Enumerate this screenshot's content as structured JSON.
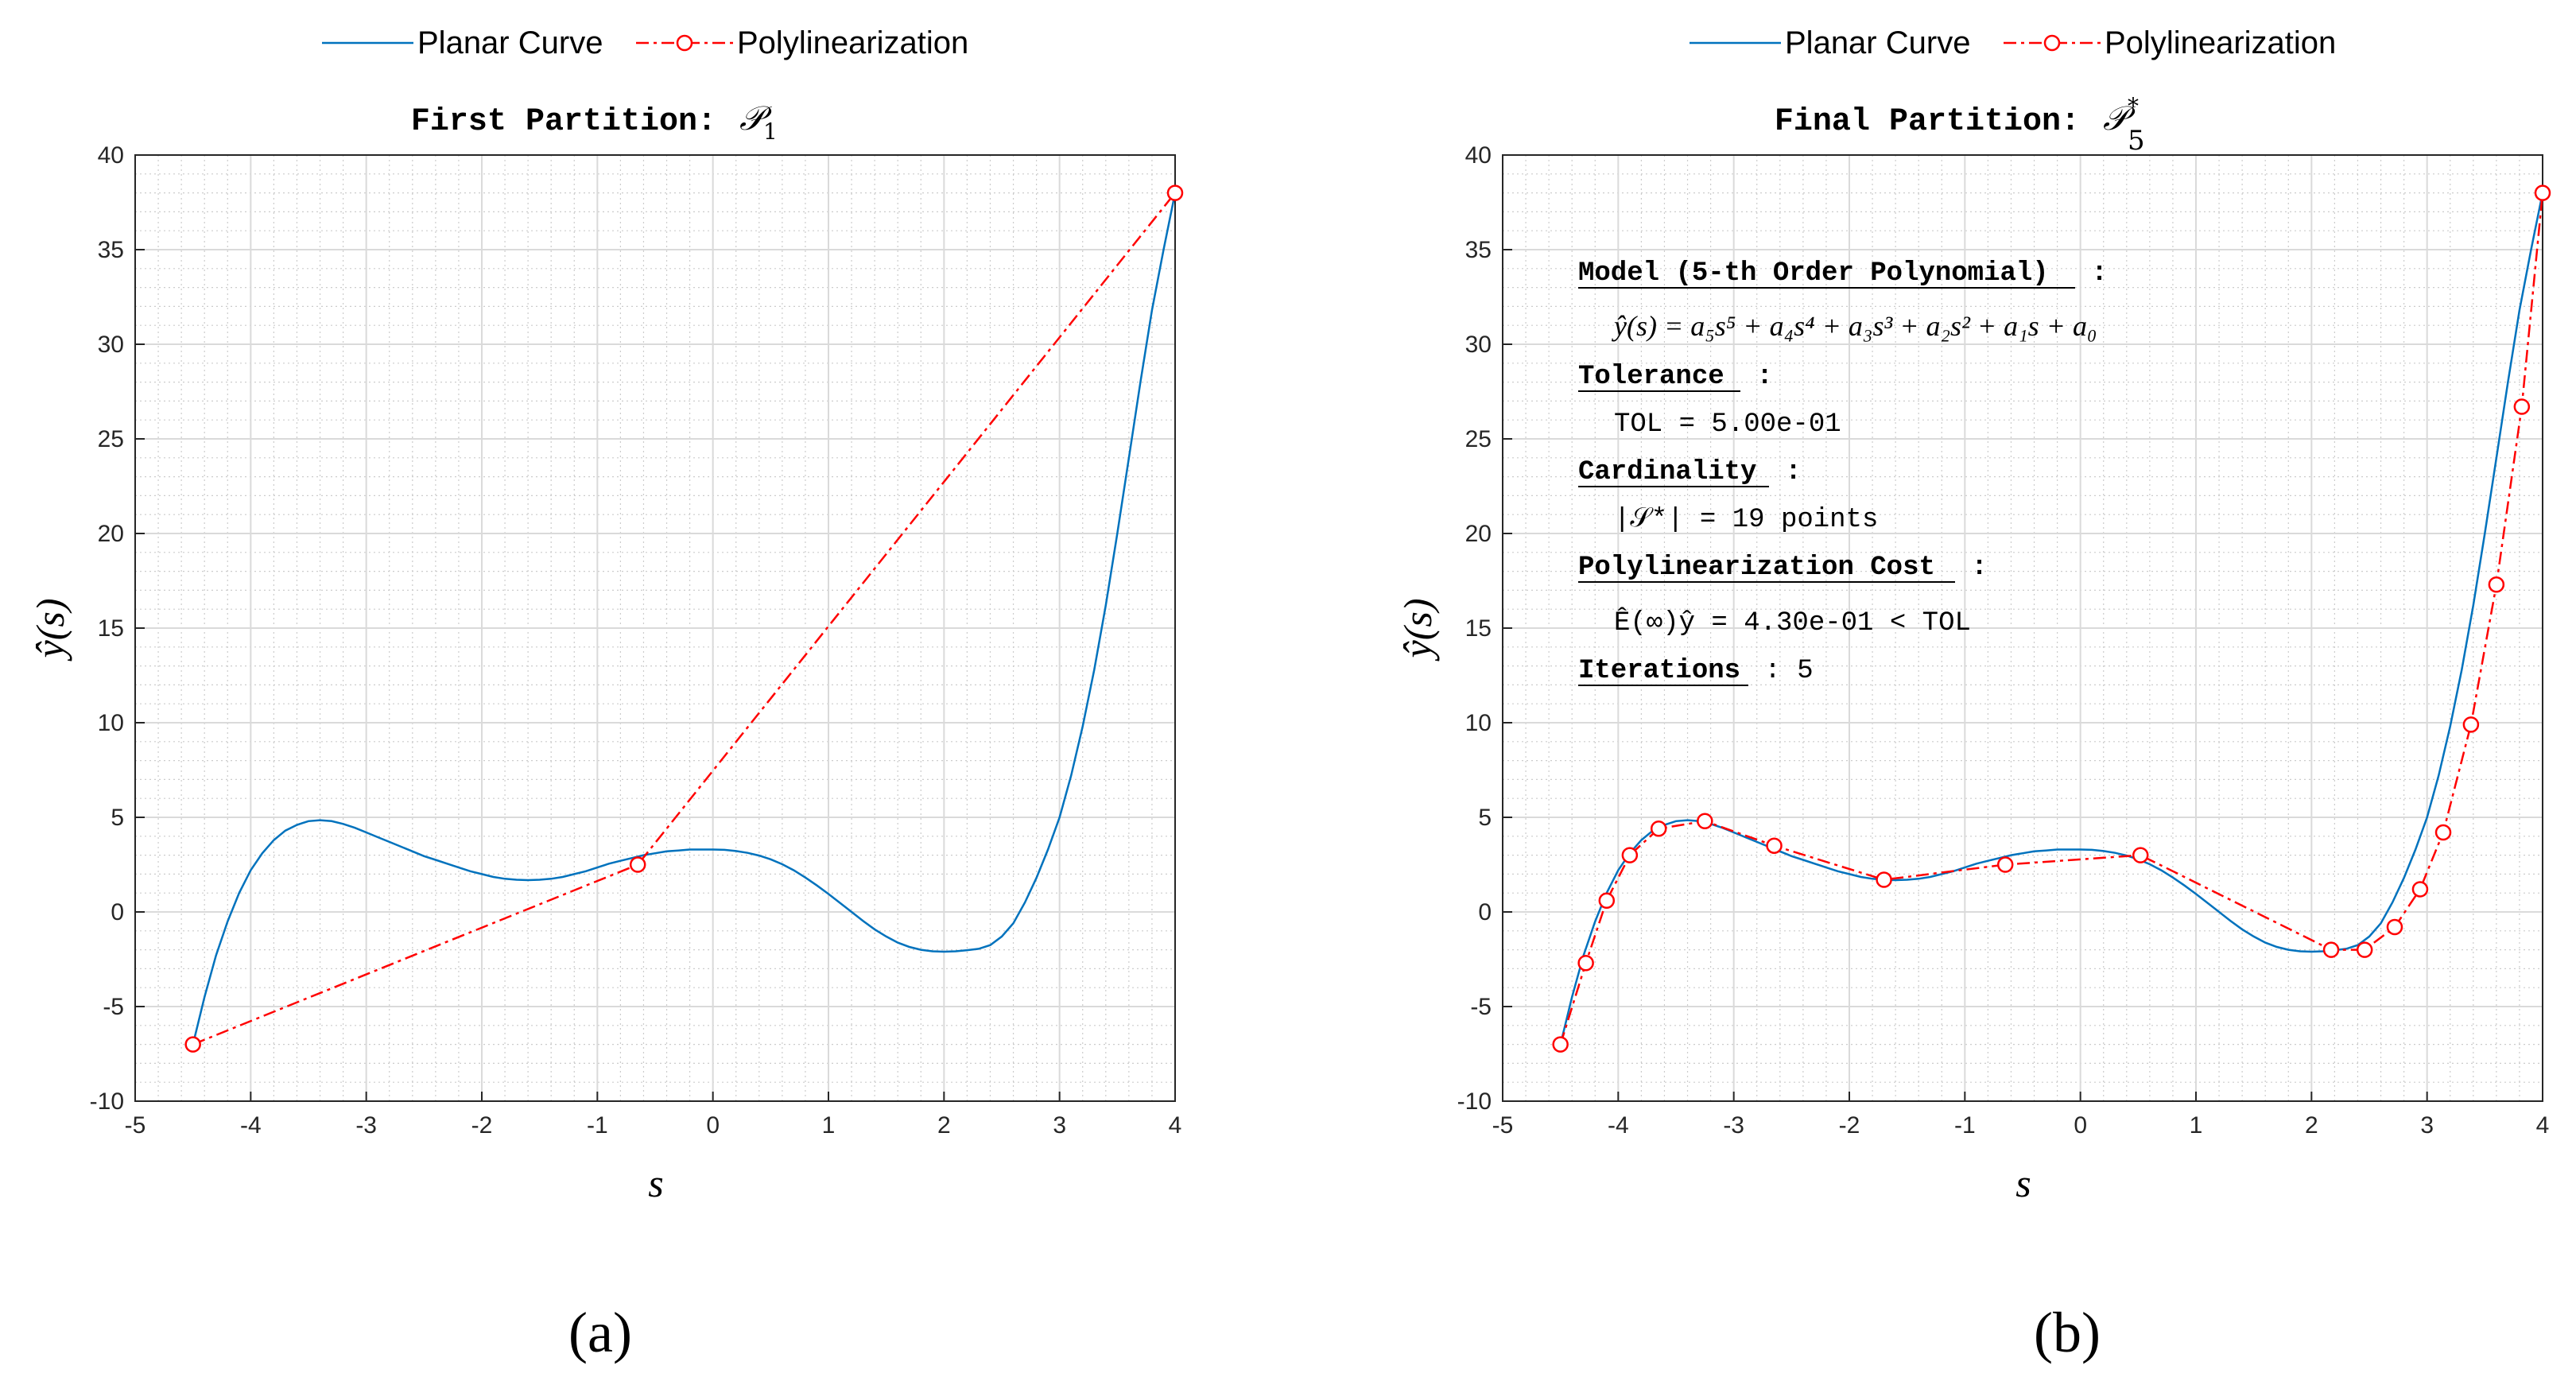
{
  "colors": {
    "curve": "#0072BD",
    "poly": "#FF0000",
    "marker_fill": "#FFFFFF",
    "grid_major": "#E6E6E6",
    "grid_minor": "#CCCCCC",
    "axis": "#262626"
  },
  "legend": {
    "curve_label": "Planar Curve",
    "poly_label": "Polylinearization",
    "placement": "top-center"
  },
  "panels": [
    {
      "title_text": "First Partition: ",
      "title_symbol": "𝒫",
      "title_sub": "1",
      "title_sup": "",
      "xlabel": "s",
      "ylabel": "ŷ(s)",
      "caption": "(a)",
      "annotation": null
    },
    {
      "title_text": "Final Partition: ",
      "title_symbol": "𝒫",
      "title_sub": "5",
      "title_sup": "*",
      "xlabel": "s",
      "ylabel": "ŷ(s)",
      "caption": "(b)",
      "annotation": {
        "model_head": "Model (5-th Order Polynomial)",
        "model_colon": " :",
        "model_eq": "ŷ(s) = a₅s⁵ + a₄s⁴ + a₃s³ + a₂s² + a₁s + a₀",
        "tol_head": "Tolerance",
        "tol_colon": " :",
        "tol_value": "TOL = 5.00e-01",
        "card_head": "Cardinality",
        "card_colon": " :",
        "card_value": "|𝒮*| = 19 points",
        "cost_head": "Polylinearization Cost",
        "cost_colon": " :",
        "cost_value": "Ê(∞)ŷ = 4.30e-01 < TOL",
        "iter_head": "Iterations",
        "iter_value": " : 5"
      }
    }
  ],
  "chart_data": [
    {
      "type": "line",
      "title": "First Partition: 𝒫1",
      "xlabel": "s",
      "ylabel": "ŷ(s)",
      "xlim": [
        -5,
        4
      ],
      "ylim": [
        -10,
        40
      ],
      "xticks": [
        -5,
        -4,
        -3,
        -2,
        -1,
        0,
        1,
        2,
        3,
        4
      ],
      "yticks": [
        -10,
        -5,
        0,
        5,
        10,
        15,
        20,
        25,
        30,
        35,
        40
      ],
      "grid": true,
      "minor_grid": true,
      "series": [
        {
          "name": "Planar Curve",
          "style": "solid",
          "x": [
            -4.5,
            -4.4,
            -4.3,
            -4.2,
            -4.1,
            -4.0,
            -3.9,
            -3.8,
            -3.7,
            -3.6,
            -3.5,
            -3.4,
            -3.3,
            -3.2,
            -3.1,
            -3.0,
            -2.9,
            -2.8,
            -2.7,
            -2.6,
            -2.5,
            -2.4,
            -2.3,
            -2.2,
            -2.1,
            -2.0,
            -1.9,
            -1.8,
            -1.7,
            -1.6,
            -1.5,
            -1.4,
            -1.3,
            -1.2,
            -1.1,
            -1.0,
            -0.9,
            -0.8,
            -0.7,
            -0.6,
            -0.5,
            -0.4,
            -0.3,
            -0.2,
            -0.1,
            0.0,
            0.1,
            0.2,
            0.3,
            0.4,
            0.5,
            0.6,
            0.7,
            0.8,
            0.9,
            1.0,
            1.1,
            1.2,
            1.3,
            1.4,
            1.5,
            1.6,
            1.7,
            1.8,
            1.9,
            2.0,
            2.1,
            2.2,
            2.3,
            2.4,
            2.5,
            2.6,
            2.7,
            2.8,
            2.9,
            3.0,
            3.1,
            3.2,
            3.3,
            3.4,
            3.5,
            3.6,
            3.7,
            3.8,
            3.9,
            4.0
          ],
          "y": [
            -7.0,
            -4.5,
            -2.3,
            -0.5,
            1.0,
            2.2,
            3.1,
            3.8,
            4.3,
            4.6,
            4.8,
            4.85,
            4.8,
            4.65,
            4.45,
            4.2,
            3.95,
            3.7,
            3.45,
            3.2,
            2.95,
            2.75,
            2.55,
            2.35,
            2.15,
            2.0,
            1.85,
            1.75,
            1.7,
            1.68,
            1.7,
            1.75,
            1.85,
            2.0,
            2.15,
            2.35,
            2.55,
            2.7,
            2.85,
            3.0,
            3.1,
            3.2,
            3.25,
            3.3,
            3.3,
            3.3,
            3.28,
            3.22,
            3.12,
            2.98,
            2.78,
            2.52,
            2.2,
            1.82,
            1.4,
            0.95,
            0.48,
            0.0,
            -0.48,
            -0.92,
            -1.3,
            -1.62,
            -1.85,
            -2.0,
            -2.08,
            -2.1,
            -2.08,
            -2.02,
            -1.95,
            -1.75,
            -1.3,
            -0.6,
            0.5,
            1.8,
            3.3,
            5.0,
            7.2,
            9.8,
            12.8,
            16.2,
            20.0,
            24.0,
            28.0,
            31.8,
            35.0,
            38.0
          ]
        },
        {
          "name": "Polylinearization",
          "style": "dash-dot with circle markers",
          "x": [
            -4.5,
            -0.65,
            4.0
          ],
          "y": [
            -7.0,
            2.5,
            38.0
          ]
        }
      ]
    },
    {
      "type": "line",
      "title": "Final Partition: 𝒫*5",
      "xlabel": "s",
      "ylabel": "ŷ(s)",
      "xlim": [
        -5,
        4
      ],
      "ylim": [
        -10,
        40
      ],
      "xticks": [
        -5,
        -4,
        -3,
        -2,
        -1,
        0,
        1,
        2,
        3,
        4
      ],
      "yticks": [
        -10,
        -5,
        0,
        5,
        10,
        15,
        20,
        25,
        30,
        35,
        40
      ],
      "grid": true,
      "minor_grid": true,
      "series": [
        {
          "name": "Planar Curve",
          "style": "solid",
          "x": [
            -4.5,
            -4.4,
            -4.3,
            -4.2,
            -4.1,
            -4.0,
            -3.9,
            -3.8,
            -3.7,
            -3.6,
            -3.5,
            -3.4,
            -3.3,
            -3.2,
            -3.1,
            -3.0,
            -2.9,
            -2.8,
            -2.7,
            -2.6,
            -2.5,
            -2.4,
            -2.3,
            -2.2,
            -2.1,
            -2.0,
            -1.9,
            -1.8,
            -1.7,
            -1.6,
            -1.5,
            -1.4,
            -1.3,
            -1.2,
            -1.1,
            -1.0,
            -0.9,
            -0.8,
            -0.7,
            -0.6,
            -0.5,
            -0.4,
            -0.3,
            -0.2,
            -0.1,
            0.0,
            0.1,
            0.2,
            0.3,
            0.4,
            0.5,
            0.6,
            0.7,
            0.8,
            0.9,
            1.0,
            1.1,
            1.2,
            1.3,
            1.4,
            1.5,
            1.6,
            1.7,
            1.8,
            1.9,
            2.0,
            2.1,
            2.2,
            2.3,
            2.4,
            2.5,
            2.6,
            2.7,
            2.8,
            2.9,
            3.0,
            3.1,
            3.2,
            3.3,
            3.4,
            3.5,
            3.6,
            3.7,
            3.8,
            3.9,
            4.0
          ],
          "y": [
            -7.0,
            -4.5,
            -2.3,
            -0.5,
            1.0,
            2.2,
            3.1,
            3.8,
            4.3,
            4.6,
            4.8,
            4.85,
            4.8,
            4.65,
            4.45,
            4.2,
            3.95,
            3.7,
            3.45,
            3.2,
            2.95,
            2.75,
            2.55,
            2.35,
            2.15,
            2.0,
            1.85,
            1.75,
            1.7,
            1.68,
            1.7,
            1.75,
            1.85,
            2.0,
            2.15,
            2.35,
            2.55,
            2.7,
            2.85,
            3.0,
            3.1,
            3.2,
            3.25,
            3.3,
            3.3,
            3.3,
            3.28,
            3.22,
            3.12,
            2.98,
            2.78,
            2.52,
            2.2,
            1.82,
            1.4,
            0.95,
            0.48,
            0.0,
            -0.48,
            -0.92,
            -1.3,
            -1.62,
            -1.85,
            -2.0,
            -2.08,
            -2.1,
            -2.08,
            -2.02,
            -1.95,
            -1.75,
            -1.3,
            -0.6,
            0.5,
            1.8,
            3.3,
            5.0,
            7.2,
            9.8,
            12.8,
            16.2,
            20.0,
            24.0,
            28.0,
            31.8,
            35.0,
            38.0
          ]
        },
        {
          "name": "Polylinearization",
          "style": "dash-dot with circle markers",
          "x": [
            -4.5,
            -4.28,
            -4.1,
            -3.9,
            -3.65,
            -3.25,
            -2.65,
            -1.7,
            -0.65,
            0.52,
            2.17,
            2.46,
            2.72,
            2.94,
            3.14,
            3.38,
            3.6,
            3.82,
            4.0
          ],
          "y": [
            -7.0,
            -2.7,
            0.6,
            3.0,
            4.4,
            4.8,
            3.5,
            1.7,
            2.5,
            3.0,
            -2.0,
            -2.0,
            -0.8,
            1.2,
            4.2,
            9.9,
            17.3,
            26.7,
            38.0
          ]
        }
      ]
    }
  ]
}
